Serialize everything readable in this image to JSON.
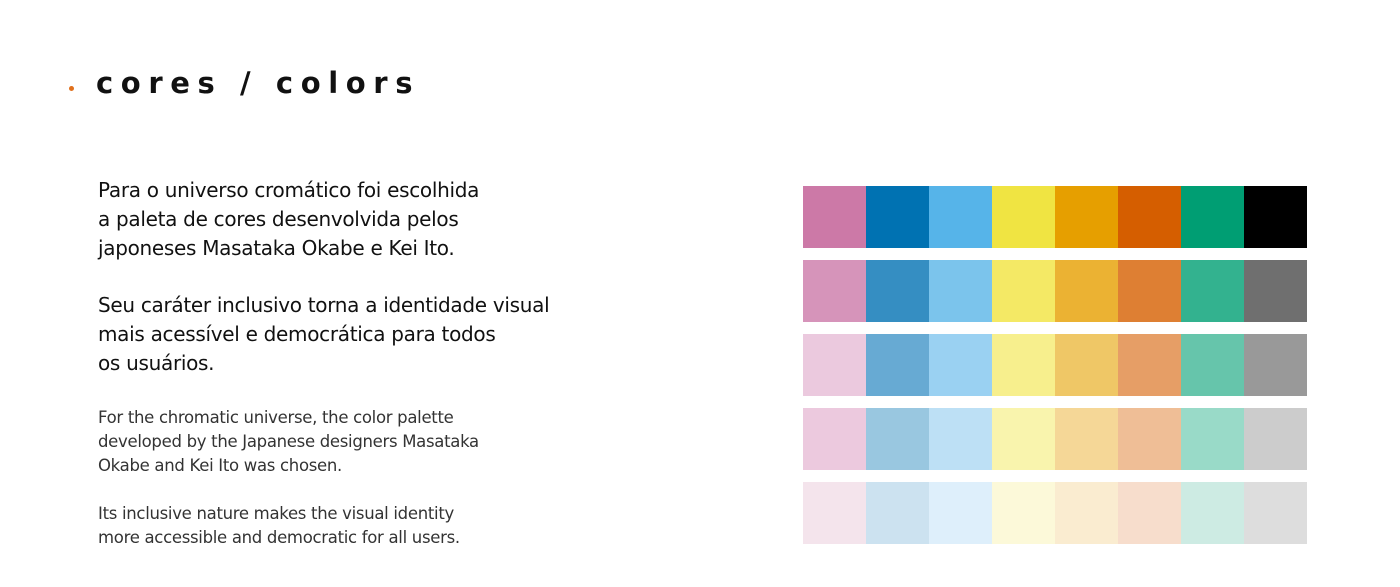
{
  "header": {
    "title": "cores / colors",
    "bullet_color": "#e0701c"
  },
  "body": {
    "pt_paragraph_1": "Para o universo cromático foi escolhida\na paleta de cores desenvolvida pelos\njaponeses Masataka Okabe e Kei Ito.",
    "pt_paragraph_2": "Seu caráter inclusivo torna a identidade visual\nmais acessível e democrática para todos\nos usuários.",
    "en_paragraph_1": "For the chromatic universe, the color palette\ndeveloped by the Japanese designers Masataka\nOkabe and Kei Ito was chosen.",
    "en_paragraph_2": "Its inclusive nature makes the visual identity\nmore accessible and democratic for all users."
  },
  "palette": {
    "rows": [
      [
        "#cc79a7",
        "#0072b2",
        "#56b4e9",
        "#f0e442",
        "#e69f00",
        "#d55e00",
        "#009e73",
        "#000000"
      ],
      [
        "#d694ba",
        "#358ec2",
        "#7bc4ec",
        "#f4e965",
        "#ebb233",
        "#de7f33",
        "#33b28f",
        "#6f6f6f"
      ],
      [
        "#ebc9de",
        "#67aad3",
        "#9ad1f2",
        "#f7ef8d",
        "#efc766",
        "#e69e66",
        "#66c5ab",
        "#999999"
      ],
      [
        "#ecc9de",
        "#99c7e0",
        "#bde0f5",
        "#f9f4ad",
        "#f5d797",
        "#efbe96",
        "#99dac8",
        "#cccccc"
      ],
      [
        "#f4e4ec",
        "#cce2f0",
        "#deeffb",
        "#fcf9d9",
        "#faecd0",
        "#f7ddcc",
        "#cdebe3",
        "#dddddd"
      ]
    ]
  }
}
